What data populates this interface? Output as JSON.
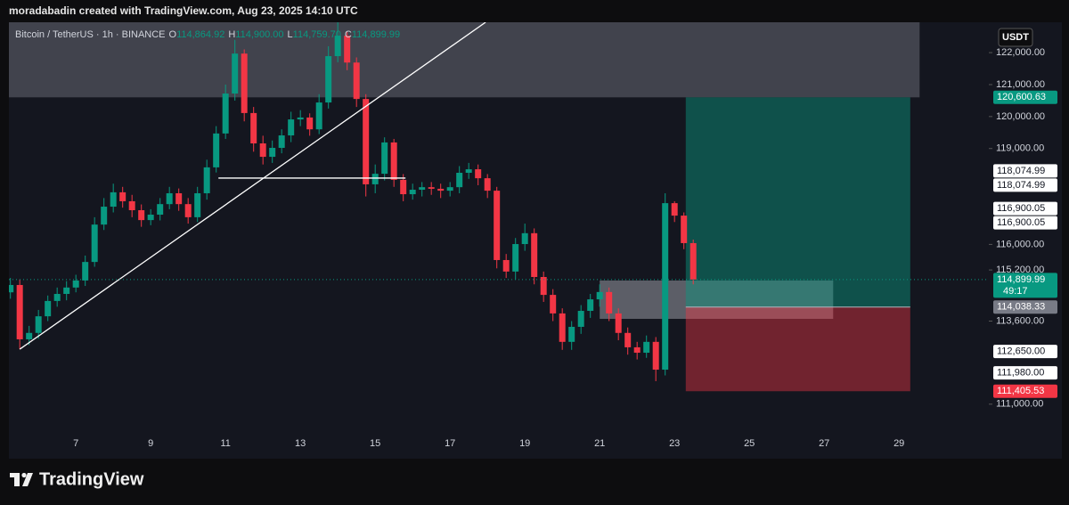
{
  "header": "moradabadin created with TradingView.com, Aug 23, 2025 14:10 UTC",
  "brand": "TradingView",
  "currency_button": "USDT",
  "chart_data": {
    "type": "candlestick",
    "legend": {
      "symbol": "Bitcoin / TetherUS · 1h · BINANCE",
      "ohlc": [
        {
          "key": "O",
          "value": "114,864.92"
        },
        {
          "key": "H",
          "value": "114,900.00"
        },
        {
          "key": "L",
          "value": "114,759.70"
        },
        {
          "key": "C",
          "value": "114,899.99"
        }
      ]
    },
    "up_color": "#089981",
    "down_color": "#f23645",
    "x": [
      5.25,
      5.5,
      5.75,
      6,
      6.25,
      6.5,
      6.75,
      7,
      7.25,
      7.5,
      7.75,
      8,
      8.25,
      8.5,
      8.75,
      9,
      9.25,
      9.5,
      9.75,
      10,
      10.25,
      10.5,
      10.75,
      11,
      11.25,
      11.5,
      11.75,
      12,
      12.25,
      12.5,
      12.75,
      13,
      13.25,
      13.5,
      13.75,
      14,
      14.25,
      14.5,
      14.75,
      15,
      15.25,
      15.5,
      15.75,
      16,
      16.25,
      16.5,
      16.75,
      17,
      17.25,
      17.5,
      17.75,
      18,
      18.25,
      18.5,
      18.75,
      19,
      19.25,
      19.5,
      19.75,
      20,
      20.25,
      20.5,
      20.75,
      21,
      21.25,
      21.5,
      21.75,
      22,
      22.25,
      22.5,
      22.75,
      23,
      23.25,
      23.5
    ],
    "open": [
      114500,
      114730,
      113030,
      113230,
      113750,
      114230,
      114450,
      114650,
      114870,
      115450,
      116620,
      117180,
      117630,
      117350,
      117070,
      116760,
      116930,
      117260,
      117600,
      117260,
      116850,
      117600,
      118410,
      119470,
      120720,
      121970,
      120110,
      119160,
      118740,
      119020,
      119410,
      119910,
      119970,
      119600,
      120440,
      121890,
      122530,
      121690,
      120550,
      117880,
      118210,
      119190,
      118020,
      117570,
      117710,
      117790,
      117740,
      117680,
      117790,
      118240,
      118350,
      118070,
      117680,
      115510,
      115150,
      116010,
      116350,
      114980,
      114420,
      113840,
      112950,
      113420,
      113920,
      114280,
      114510,
      113840,
      113230,
      112780,
      112610,
      112950,
      112080,
      117290,
      116900,
      116040
    ],
    "high": [
      114950,
      114900,
      113450,
      113950,
      114400,
      114650,
      114850,
      115050,
      115650,
      116850,
      117450,
      117900,
      117800,
      117550,
      117250,
      117100,
      117450,
      117800,
      117750,
      117450,
      117800,
      118650,
      119700,
      121000,
      122400,
      122100,
      120300,
      119400,
      119250,
      119600,
      120150,
      120200,
      120100,
      120700,
      122200,
      122950,
      122650,
      121850,
      120700,
      118500,
      119350,
      119300,
      118200,
      117900,
      117950,
      117950,
      117900,
      117950,
      118450,
      118550,
      118500,
      118200,
      117800,
      115700,
      116200,
      116650,
      116500,
      115150,
      114600,
      114000,
      113600,
      114100,
      114450,
      114750,
      114650,
      114000,
      113400,
      112950,
      113150,
      113100,
      117600,
      117350,
      117000,
      116150
    ],
    "low": [
      114300,
      112720,
      112850,
      113050,
      113600,
      114050,
      114250,
      114500,
      114700,
      115300,
      116450,
      117000,
      117150,
      116850,
      116550,
      116600,
      116750,
      117100,
      117050,
      116650,
      116700,
      117400,
      118250,
      119300,
      120500,
      119850,
      118900,
      118500,
      118550,
      118850,
      119200,
      119700,
      119400,
      119450,
      120250,
      121700,
      121450,
      120300,
      117500,
      117600,
      118000,
      117800,
      117350,
      117400,
      117500,
      117550,
      117450,
      117500,
      117600,
      118050,
      117850,
      117450,
      115250,
      114950,
      114900,
      115800,
      114750,
      114200,
      113600,
      112700,
      112700,
      113200,
      113700,
      114050,
      113600,
      113000,
      112550,
      112400,
      112450,
      111720,
      111900,
      116700,
      115850,
      114750
    ],
    "close": [
      114730,
      113030,
      113230,
      113750,
      114230,
      114450,
      114650,
      114870,
      115450,
      116620,
      117180,
      117630,
      117350,
      117070,
      116760,
      116930,
      117260,
      117600,
      117260,
      116850,
      117600,
      118410,
      119470,
      120720,
      121970,
      120110,
      119160,
      118740,
      119020,
      119410,
      119910,
      119970,
      119600,
      120440,
      121890,
      122530,
      121690,
      120550,
      117880,
      118210,
      119190,
      118020,
      117570,
      117710,
      117790,
      117740,
      117680,
      117790,
      118240,
      118350,
      118070,
      117680,
      115510,
      115150,
      116010,
      116350,
      114980,
      114420,
      113840,
      112950,
      113420,
      113920,
      114280,
      114510,
      113840,
      113230,
      112780,
      112610,
      112950,
      112080,
      117290,
      116900,
      116040,
      114899.99
    ],
    "xlim": [
      5.21,
      31.4
    ],
    "ylim": [
      110270,
      122950
    ],
    "xticks": [
      7,
      9,
      11,
      13,
      15,
      17,
      19,
      21,
      23,
      25,
      27,
      29
    ],
    "yticks": [
      {
        "value": 122000,
        "label": "122,000.00"
      },
      {
        "value": 121000,
        "label": "121,000.00"
      },
      {
        "value": 120000,
        "label": "120,000.00"
      },
      {
        "value": 119000,
        "label": "119,000.00"
      },
      {
        "value": 116000,
        "label": "116,000.00"
      },
      {
        "value": 115200,
        "label": "115,200.00"
      },
      {
        "value": 113600,
        "label": "113,600.00"
      },
      {
        "value": 111000,
        "label": "111,000.00"
      }
    ],
    "grid": false,
    "zones": [
      {
        "x": [
          5.0,
          29.55
        ],
        "y": [
          120600.63,
          123500
        ],
        "color": "rgba(120,123,134,0.45)"
      },
      {
        "x": [
          21.0,
          27.24
        ],
        "y": [
          113670,
          114870
        ],
        "color": "rgba(180,182,190,0.45)"
      }
    ],
    "position": {
      "x": [
        23.3,
        29.3
      ],
      "entry": 114038.33,
      "target": 120600.63,
      "stop": 111405.53,
      "profit_color": "rgba(8,153,129,0.45)",
      "loss_color": "rgba(242,54,69,0.42)"
    },
    "lines": [
      {
        "points": [
          [
            5.5,
            112720
          ],
          [
            17.95,
            122950
          ]
        ],
        "color": "#ffffff"
      },
      {
        "points": [
          [
            10.81,
            118074.99
          ],
          [
            15.81,
            118074.99
          ]
        ],
        "color": "#ffffff"
      }
    ],
    "price_labels": [
      {
        "value": 120600.63,
        "label": "120,600.63",
        "bg": "#089981",
        "fg": "#ffffff"
      },
      {
        "value": 118074.99,
        "label": "118,074.99",
        "bg": "#ffffff",
        "fg": "#131722"
      },
      {
        "value": 118074.99,
        "label": "118,074.99",
        "bg": "#ffffff",
        "fg": "#131722"
      },
      {
        "value": 116900.05,
        "label": "116,900.05",
        "bg": "#ffffff",
        "fg": "#131722"
      },
      {
        "value": 116900.05,
        "label": "116,900.05",
        "bg": "#ffffff",
        "fg": "#131722"
      },
      {
        "value": 114899.99,
        "label": "114,899.99",
        "countdown": "49:17",
        "bg": "#089981",
        "fg": "#ffffff"
      },
      {
        "value": 114038.33,
        "label": "114,038.33",
        "bg": "#787b86",
        "fg": "#ffffff"
      },
      {
        "value": 112650.0,
        "label": "112,650.00",
        "bg": "#ffffff",
        "fg": "#131722"
      },
      {
        "value": 111980.0,
        "label": "111,980.00",
        "bg": "#ffffff",
        "fg": "#131722"
      },
      {
        "value": 111405.53,
        "label": "111,405.53",
        "bg": "#f23645",
        "fg": "#ffffff"
      }
    ]
  }
}
